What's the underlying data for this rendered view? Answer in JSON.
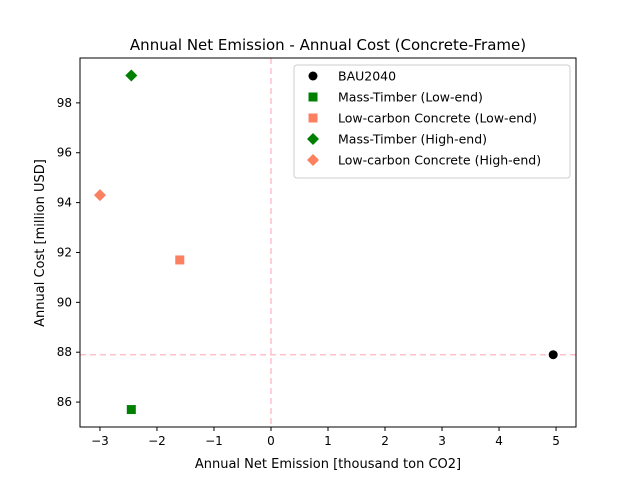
{
  "chart_data": {
    "type": "scatter",
    "title": "Annual Net Emission - Annual Cost (Concrete-Frame)",
    "xlabel": "Annual Net Emission [thousand ton CO2]",
    "ylabel": "Annual Cost [million USD]",
    "xlim": [
      -3.35,
      5.35
    ],
    "ylim": [
      85.0,
      99.8
    ],
    "xticks": [
      -3,
      -2,
      -1,
      0,
      1,
      2,
      3,
      4,
      5
    ],
    "xtick_labels": [
      "−3",
      "−2",
      "−1",
      "0",
      "1",
      "2",
      "3",
      "4",
      "5"
    ],
    "yticks": [
      86,
      88,
      90,
      92,
      94,
      96,
      98
    ],
    "ytick_labels": [
      "86",
      "88",
      "90",
      "92",
      "94",
      "96",
      "98"
    ],
    "grid": false,
    "legend_position": "top-right",
    "reference_lines": {
      "x": 0,
      "y": 87.9,
      "color": "#ffc0cb",
      "style": "dashed"
    },
    "series": [
      {
        "name": "BAU2040",
        "marker": "circle",
        "color": "#000000",
        "x": [
          4.95
        ],
        "y": [
          87.9
        ]
      },
      {
        "name": "Mass-Timber (Low-end)",
        "marker": "square",
        "color": "#008000",
        "x": [
          -2.45
        ],
        "y": [
          85.7
        ]
      },
      {
        "name": "Low-carbon Concrete (Low-end)",
        "marker": "square",
        "color": "#fa8060",
        "x": [
          -1.6
        ],
        "y": [
          91.7
        ]
      },
      {
        "name": "Mass-Timber (High-end)",
        "marker": "diamond",
        "color": "#008000",
        "x": [
          -2.45
        ],
        "y": [
          99.1
        ]
      },
      {
        "name": "Low-carbon Concrete (High-end)",
        "marker": "diamond",
        "color": "#fa8060",
        "x": [
          -3.0
        ],
        "y": [
          94.3
        ]
      }
    ]
  }
}
